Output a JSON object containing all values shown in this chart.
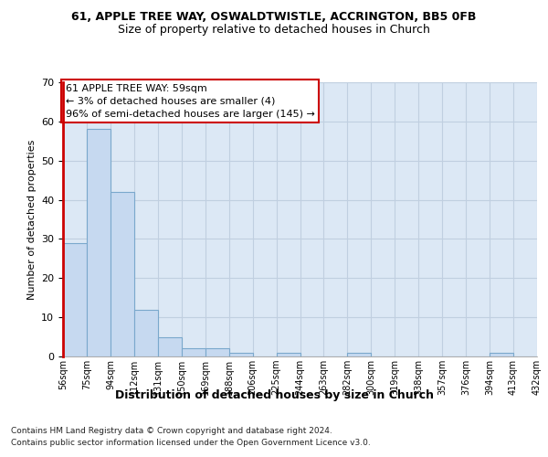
{
  "title_line1": "61, APPLE TREE WAY, OSWALDTWISTLE, ACCRINGTON, BB5 0FB",
  "title_line2": "Size of property relative to detached houses in Church",
  "xlabel": "Distribution of detached houses by size in Church",
  "ylabel": "Number of detached properties",
  "footnote1": "Contains HM Land Registry data © Crown copyright and database right 2024.",
  "footnote2": "Contains public sector information licensed under the Open Government Licence v3.0.",
  "annotation_line1": "61 APPLE TREE WAY: 59sqm",
  "annotation_line2": "← 3% of detached houses are smaller (4)",
  "annotation_line3": "96% of semi-detached houses are larger (145) →",
  "bar_values": [
    29,
    58,
    42,
    12,
    5,
    2,
    2,
    1,
    0,
    1,
    0,
    0,
    1,
    0,
    0,
    0,
    0,
    0,
    1,
    0
  ],
  "bar_labels": [
    "56sqm",
    "75sqm",
    "94sqm",
    "112sqm",
    "131sqm",
    "150sqm",
    "169sqm",
    "188sqm",
    "206sqm",
    "225sqm",
    "244sqm",
    "263sqm",
    "282sqm",
    "300sqm",
    "319sqm",
    "338sqm",
    "357sqm",
    "376sqm",
    "394sqm",
    "413sqm",
    "432sqm"
  ],
  "bar_color": "#c6d9f0",
  "bar_edge_color": "#7aa8cc",
  "annotation_box_edge_color": "#cc0000",
  "red_line_color": "#cc0000",
  "ylim": [
    0,
    70
  ],
  "yticks": [
    0,
    10,
    20,
    30,
    40,
    50,
    60,
    70
  ],
  "grid_color": "#c0cfe0",
  "background_color": "#dce8f5",
  "title1_fontsize": 9,
  "title2_fontsize": 9,
  "ylabel_fontsize": 8,
  "xlabel_fontsize": 9,
  "tick_fontsize": 7,
  "ytick_fontsize": 8,
  "annot_fontsize": 8,
  "footnote_fontsize": 6.5
}
